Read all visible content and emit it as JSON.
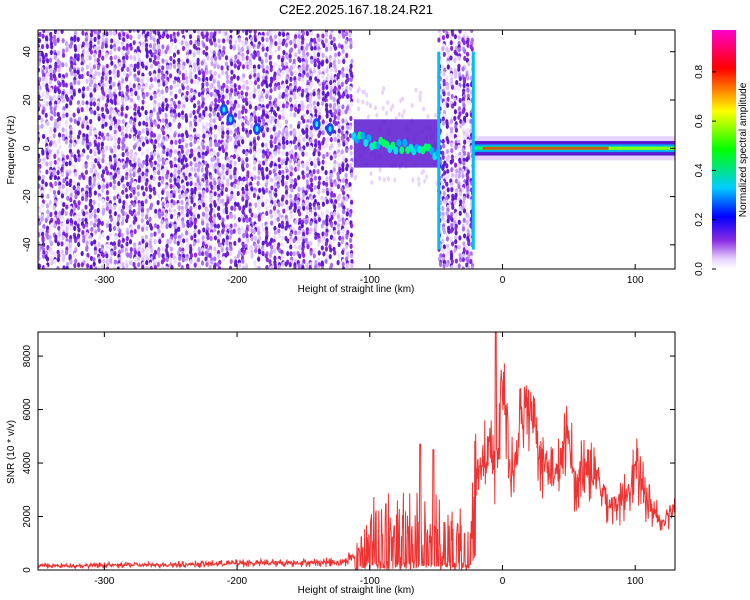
{
  "title": "C2E2.2025.167.18.24.R21",
  "chart_data": [
    {
      "type": "heatmap",
      "xlabel": "Height of straight line (km)",
      "ylabel": "Frequency (Hz)",
      "xlim": [
        -350,
        130
      ],
      "ylim": [
        -50,
        49
      ],
      "xticks": [
        -300,
        -200,
        -100,
        0,
        100
      ],
      "yticks": [
        -40,
        -20,
        0,
        20,
        40
      ],
      "grid": false,
      "colorbar": {
        "label": "Normalized spectral amplitude",
        "range": [
          0,
          0.97
        ],
        "ticks": [
          0.0,
          0.2,
          0.4,
          0.6,
          0.8
        ],
        "colormap": "rainbow",
        "colors": [
          "#ffffff",
          "#8a2be2",
          "#0000ff",
          "#00ffff",
          "#00ff00",
          "#ffff00",
          "#ff0000",
          "#ff00ff"
        ]
      },
      "regions": [
        {
          "x": [
            -350,
            -112
          ],
          "description_value": "broadband noise",
          "freq_range": [
            -50,
            49
          ],
          "amplitude": 0.1
        },
        {
          "x": [
            -112,
            -48
          ],
          "freq_range": [
            -8,
            12
          ],
          "amplitude": 0.35
        },
        {
          "x": [
            -48,
            -22
          ],
          "freq_range": [
            -50,
            49
          ],
          "amplitude": 0.12
        },
        {
          "x": [
            -22,
            130
          ],
          "freq_range": [
            -3,
            3
          ],
          "amplitude": 0.9
        }
      ]
    },
    {
      "type": "line",
      "xlabel": "Height of straight line (km)",
      "ylabel": "SNR (10 * v/v)",
      "xlim": [
        -350,
        130
      ],
      "ylim": [
        0,
        8900
      ],
      "xticks": [
        -300,
        -200,
        -100,
        0,
        100
      ],
      "yticks": [
        0,
        2000,
        4000,
        6000,
        8000
      ],
      "grid": false,
      "color": "#ee3333",
      "series": [
        {
          "x": [
            -350,
            -300,
            -250,
            -200,
            -150,
            -120,
            -110,
            -100,
            -90,
            -80,
            -70,
            -60,
            -50,
            -40,
            -30,
            -25,
            -20,
            -15,
            -10,
            -5,
            0,
            5,
            10,
            15,
            20,
            25,
            30,
            40,
            50,
            55,
            60,
            70,
            80,
            90,
            100,
            110,
            120,
            130
          ],
          "values": [
            150,
            180,
            200,
            250,
            280,
            300,
            600,
            1500,
            1800,
            1600,
            1700,
            1500,
            1500,
            1400,
            1300,
            1000,
            3500,
            4000,
            4500,
            3500,
            7500,
            3500,
            4000,
            6000,
            6500,
            5500,
            4000,
            3500,
            5000,
            3000,
            4000,
            3500,
            2500,
            2500,
            3800,
            2500,
            1800,
            2500
          ]
        }
      ]
    }
  ]
}
